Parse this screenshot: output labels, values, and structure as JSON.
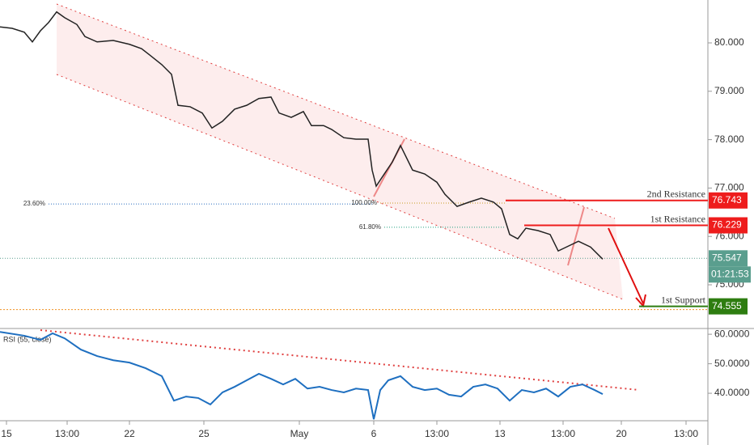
{
  "chart_data": [
    {
      "type": "line",
      "color": "#222",
      "x": [
        0,
        15,
        30,
        40,
        50,
        60,
        70,
        80,
        95,
        105,
        120,
        140,
        160,
        175,
        185,
        200,
        212,
        220,
        235,
        250,
        262,
        275,
        290,
        305,
        320,
        335,
        345,
        360,
        375,
        385,
        400,
        410,
        425,
        440,
        455,
        460,
        465,
        475,
        485,
        495,
        500,
        510,
        525,
        540,
        550,
        565,
        580,
        595,
        610,
        620,
        630,
        640,
        650,
        665,
        680,
        690,
        700,
        715,
        730,
        745
      ],
      "values": [
        80.33,
        80.3,
        80.22,
        80.02,
        80.25,
        80.42,
        80.64,
        80.52,
        80.38,
        80.13,
        80.02,
        80.05,
        79.97,
        79.88,
        79.75,
        79.55,
        79.35,
        78.71,
        78.68,
        78.55,
        78.24,
        78.38,
        78.63,
        78.71,
        78.85,
        78.88,
        78.55,
        78.46,
        78.58,
        78.29,
        78.29,
        78.21,
        78.04,
        78.01,
        78.01,
        77.37,
        77.04,
        77.29,
        77.54,
        77.88,
        77.71,
        77.37,
        77.29,
        77.12,
        76.87,
        76.62,
        76.71,
        76.79,
        76.71,
        76.57,
        76.04,
        75.95,
        76.17,
        76.12,
        76.04,
        75.7,
        75.78,
        75.9,
        75.78,
        75.53
      ],
      "xlim": [
        0,
        870
      ],
      "xticks": [
        {
          "value": 8,
          "label": "15"
        },
        {
          "value": 83,
          "label": "13:00"
        },
        {
          "value": 160,
          "label": "22"
        },
        {
          "value": 252,
          "label": "25"
        },
        {
          "value": 370,
          "label": "May"
        },
        {
          "value": 462,
          "label": "6"
        },
        {
          "value": 540,
          "label": "13:00"
        },
        {
          "value": 618,
          "label": "13"
        },
        {
          "value": 696,
          "label": "13:00"
        },
        {
          "value": 768,
          "label": "20"
        },
        {
          "value": 848,
          "label": "13:00"
        }
      ],
      "ylim": [
        74.114,
        80.886
      ],
      "yticks": [
        {
          "value": 80,
          "label": "80.000"
        },
        {
          "value": 79,
          "label": "79.000"
        },
        {
          "value": 78,
          "label": "78.000"
        },
        {
          "value": 77,
          "label": "77.000"
        },
        {
          "value": 76,
          "label": "76.000"
        },
        {
          "value": 75,
          "label": "75.000"
        }
      ],
      "levels": [
        {
          "label": "2nd Resistance",
          "value": 76.743,
          "color": "#ee1c1c",
          "start": 625
        },
        {
          "label": "1st Resistance",
          "value": 76.229,
          "color": "#ee1c1c",
          "start": 648
        },
        {
          "label": "1st Support",
          "value": 74.555,
          "color": "#2e7d10",
          "start": 790
        }
      ],
      "fib_levels": [
        {
          "label": "23.60%",
          "value": 76.67,
          "start": 60
        },
        {
          "label": "100.00%",
          "value": 76.69,
          "start": 470
        },
        {
          "label": "61.80%",
          "value": 76.19,
          "start": 475
        }
      ],
      "current_price": 75.547,
      "countdown": "01:21:53"
    },
    {
      "type": "line",
      "label": "RSI (55, close)",
      "color": "#1e6fc0",
      "x": [
        0,
        30,
        50,
        65,
        80,
        100,
        120,
        140,
        160,
        180,
        200,
        215,
        230,
        245,
        260,
        275,
        290,
        305,
        320,
        335,
        350,
        365,
        380,
        395,
        410,
        425,
        440,
        455,
        462,
        470,
        480,
        495,
        510,
        525,
        540,
        555,
        570,
        585,
        600,
        615,
        630,
        645,
        660,
        675,
        690,
        705,
        720,
        735,
        745
      ],
      "values": [
        60.8,
        59.5,
        58.1,
        60.3,
        58.6,
        54.8,
        52.6,
        51.2,
        50.4,
        48.5,
        45.8,
        37.5,
        38.9,
        38.4,
        36.2,
        40.3,
        42.2,
        44.4,
        46.6,
        44.9,
        43.0,
        44.9,
        41.6,
        42.2,
        41.1,
        40.3,
        41.6,
        41.1,
        31.2,
        41.1,
        44.4,
        45.8,
        42.2,
        41.1,
        41.6,
        39.5,
        38.9,
        42.2,
        43.0,
        41.6,
        37.5,
        41.1,
        40.3,
        41.6,
        38.9,
        42.2,
        43.0,
        41.1,
        39.7
      ],
      "xlim": [
        0,
        870
      ],
      "ylim": [
        30.7,
        61.4
      ],
      "yticks": [
        {
          "value": 60,
          "label": "60.0000"
        },
        {
          "value": 50,
          "label": "50.0000"
        },
        {
          "value": 40,
          "label": "40.0000"
        }
      ]
    }
  ]
}
